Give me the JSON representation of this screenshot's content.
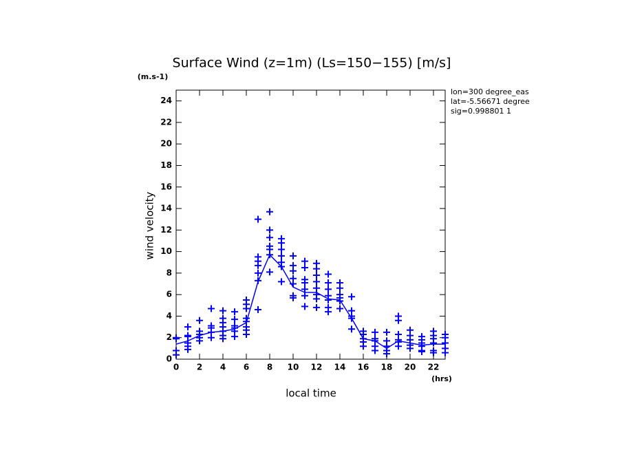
{
  "chart_data": {
    "type": "scatter",
    "title": "Surface Wind (z=1m) (Ls=150−155) [m/s]",
    "y_unit": "(m.s-1)",
    "x_unit": "(hrs)",
    "y_label": "wind velocity",
    "x_label": "local time",
    "annotations": [
      "lon=300 degree_eas",
      "lat=-5.56671 degree",
      "sig=0.998801 1"
    ],
    "color": "#0000ff",
    "xlim": [
      0,
      23
    ],
    "ylim": [
      0,
      25
    ],
    "xticks": [
      0,
      2,
      4,
      6,
      8,
      10,
      12,
      14,
      16,
      18,
      20,
      22
    ],
    "yticks": [
      0,
      2,
      4,
      6,
      8,
      10,
      12,
      14,
      16,
      18,
      20,
      22,
      24
    ],
    "points": {
      "x": [
        0,
        0,
        0,
        0,
        1,
        1,
        1,
        1,
        1,
        1,
        2,
        2,
        2,
        2,
        2,
        3,
        3,
        3,
        3,
        3,
        4,
        4,
        4,
        4,
        4,
        4,
        4,
        5,
        5,
        5,
        5,
        5,
        5,
        6,
        6,
        6,
        6,
        6,
        6,
        6,
        6,
        7,
        7,
        7,
        7,
        7,
        7,
        7,
        8,
        8,
        8,
        8,
        8,
        8,
        8,
        9,
        9,
        9,
        9,
        9,
        9,
        9,
        10,
        10,
        10,
        10,
        10,
        10,
        10,
        11,
        11,
        11,
        11,
        11,
        11,
        11,
        12,
        12,
        12,
        12,
        12,
        12,
        12,
        12,
        13,
        13,
        13,
        13,
        13,
        13,
        13,
        14,
        14,
        14,
        14,
        14,
        14,
        15,
        15,
        15,
        15,
        15,
        16,
        16,
        16,
        16,
        16,
        17,
        17,
        17,
        17,
        17,
        18,
        18,
        18,
        18,
        18,
        19,
        19,
        19,
        19,
        19,
        19,
        20,
        20,
        20,
        20,
        20,
        21,
        21,
        21,
        21,
        21,
        21,
        22,
        22,
        22,
        22,
        22,
        22,
        23,
        23,
        23,
        23,
        23
      ],
      "y": [
        2.0,
        1.9,
        0.8,
        0.4,
        3.0,
        2.2,
        2.1,
        1.5,
        1.2,
        0.9,
        3.6,
        2.6,
        2.3,
        2.0,
        1.7,
        4.7,
        3.1,
        2.9,
        2.5,
        2.0,
        4.5,
        3.8,
        3.4,
        3.0,
        2.6,
        2.2,
        1.9,
        4.4,
        3.7,
        3.1,
        2.9,
        2.6,
        2.1,
        5.5,
        5.1,
        4.7,
        3.8,
        3.5,
        3.0,
        2.7,
        2.3,
        13.0,
        9.5,
        9.1,
        8.7,
        8.0,
        7.3,
        4.6,
        13.7,
        12.0,
        11.3,
        10.5,
        10.2,
        9.7,
        8.1,
        11.2,
        10.8,
        10.2,
        9.6,
        9.0,
        8.6,
        7.2,
        9.6,
        8.7,
        8.2,
        7.5,
        7.0,
        5.9,
        5.7,
        9.1,
        8.5,
        7.4,
        7.1,
        6.5,
        5.9,
        4.9,
        8.9,
        8.4,
        7.8,
        7.2,
        6.6,
        6.0,
        5.6,
        4.8,
        7.9,
        7.1,
        6.5,
        5.9,
        5.5,
        4.8,
        4.4,
        7.1,
        6.6,
        6.0,
        5.7,
        5.4,
        4.7,
        5.8,
        4.5,
        4.0,
        3.8,
        2.8,
        2.6,
        2.3,
        1.9,
        1.6,
        1.2,
        2.5,
        1.9,
        1.7,
        1.2,
        0.8,
        2.5,
        1.7,
        1.2,
        0.8,
        0.5,
        4.0,
        3.6,
        2.3,
        1.8,
        1.6,
        1.2,
        2.7,
        2.2,
        1.8,
        1.3,
        1.0,
        2.1,
        1.8,
        1.5,
        1.2,
        0.8,
        0.7,
        2.6,
        2.2,
        1.9,
        1.5,
        0.8,
        0.6,
        2.3,
        2.0,
        1.5,
        1.0,
        0.6
      ]
    },
    "mean": {
      "x": [
        0,
        1,
        2,
        3,
        4,
        5,
        6,
        7,
        8,
        9,
        10,
        11,
        12,
        13,
        14,
        15,
        16,
        17,
        18,
        19,
        20,
        21,
        22,
        23
      ],
      "y": [
        1.4,
        1.7,
        2.2,
        2.5,
        2.6,
        2.8,
        3.4,
        7.2,
        9.7,
        8.6,
        6.7,
        6.2,
        6.2,
        5.6,
        5.5,
        3.8,
        1.9,
        1.7,
        1.0,
        1.7,
        1.5,
        1.3,
        1.4,
        1.4
      ]
    }
  }
}
